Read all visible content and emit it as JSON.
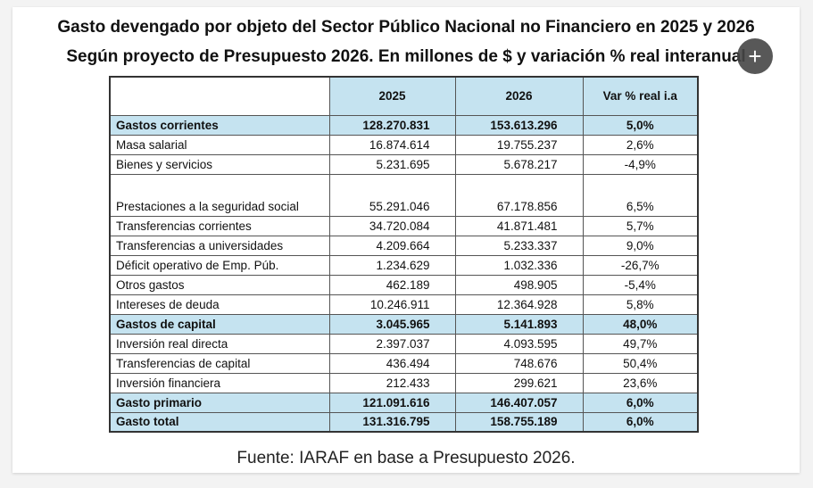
{
  "title_line1": "Gasto devengado por objeto del Sector Público Nacional no Financiero en 2025 y 2026",
  "title_line2": "Según proyecto de Presupuesto 2026. En millones de $ y variación % real interanual",
  "table": {
    "headers": [
      "",
      "2025",
      "2026",
      "Var % real i.a"
    ],
    "rows": [
      {
        "label": "Gastos corrientes",
        "v2025": "128.270.831",
        "v2026": "153.613.296",
        "var": "5,0%"
      },
      {
        "label": "Masa salarial",
        "v2025": "16.874.614",
        "v2026": "19.755.237",
        "var": "2,6%"
      },
      {
        "label": "Bienes y servicios",
        "v2025": "5.231.695",
        "v2026": "5.678.217",
        "var": "-4,9%"
      },
      {
        "label": "Prestaciones a la seguridad social",
        "v2025": "55.291.046",
        "v2026": "67.178.856",
        "var": "6,5%"
      },
      {
        "label": "Transferencias corrientes",
        "v2025": "34.720.084",
        "v2026": "41.871.481",
        "var": "5,7%"
      },
      {
        "label": "Transferencias a universidades",
        "v2025": "4.209.664",
        "v2026": "5.233.337",
        "var": "9,0%"
      },
      {
        "label": "Déficit operativo de Emp. Púb.",
        "v2025": "1.234.629",
        "v2026": "1.032.336",
        "var": "-26,7%"
      },
      {
        "label": "Otros gastos",
        "v2025": "462.189",
        "v2026": "498.905",
        "var": "-5,4%"
      },
      {
        "label": "Intereses de deuda",
        "v2025": "10.246.911",
        "v2026": "12.364.928",
        "var": "5,8%"
      },
      {
        "label": "Gastos de capital",
        "v2025": "3.045.965",
        "v2026": "5.141.893",
        "var": "48,0%"
      },
      {
        "label": "Inversión real directa",
        "v2025": "2.397.037",
        "v2026": "4.093.595",
        "var": "49,7%"
      },
      {
        "label": "Transferencias de capital",
        "v2025": "436.494",
        "v2026": "748.676",
        "var": "50,4%"
      },
      {
        "label": "Inversión financiera",
        "v2025": "212.433",
        "v2026": "299.621",
        "var": "23,6%"
      },
      {
        "label": "Gasto primario",
        "v2025": "121.091.616",
        "v2026": "146.407.057",
        "var": "6,0%"
      },
      {
        "label": "Gasto total",
        "v2025": "131.316.795",
        "v2026": "158.755.189",
        "var": "6,0%"
      }
    ]
  },
  "source": "Fuente: IARAF en base a Presupuesto 2026.",
  "plus_button": "+",
  "colors": {
    "highlight": "#c5e3f0"
  }
}
